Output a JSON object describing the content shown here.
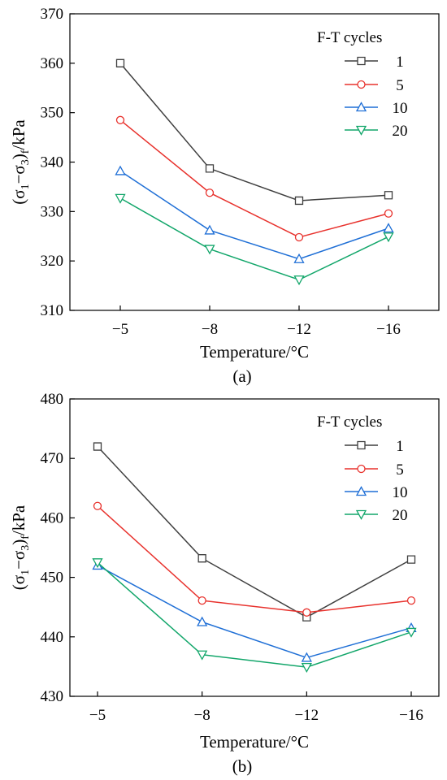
{
  "chart_data": [
    {
      "type": "line",
      "panel_label": "(a)",
      "xlabel": "Temperature/°C",
      "ylabel": {
        "prefix": "(σ",
        "sub1": "1",
        "mid": "−σ",
        "sub2": "3",
        "close": ")",
        "sub3": "f",
        "suffix": "/kPa"
      },
      "categories": [
        "−5",
        "−8",
        "−12",
        "−16"
      ],
      "x": [
        -5,
        -8,
        -12,
        -16
      ],
      "ylim": [
        310,
        370
      ],
      "yticks": [
        310,
        320,
        330,
        340,
        350,
        360,
        370
      ],
      "legend_title": "F-T cycles",
      "legend_position": "top-right",
      "grid": false,
      "series": [
        {
          "name": "1",
          "color": "#3f3f3f",
          "marker": "square",
          "values": [
            360.0,
            338.7,
            332.2,
            333.3
          ]
        },
        {
          "name": "5",
          "color": "#e8322d",
          "marker": "circle",
          "values": [
            348.5,
            333.8,
            324.8,
            329.6
          ]
        },
        {
          "name": "10",
          "color": "#1f6fd6",
          "marker": "triangle-up",
          "values": [
            338.2,
            326.2,
            320.4,
            326.6
          ]
        },
        {
          "name": "20",
          "color": "#12a66a",
          "marker": "triangle-down",
          "values": [
            332.7,
            322.4,
            316.2,
            324.9
          ]
        }
      ]
    },
    {
      "type": "line",
      "panel_label": "(b)",
      "xlabel": "Temperature/°C",
      "ylabel": {
        "prefix": "(σ",
        "sub1": "1",
        "mid": "−σ",
        "sub2": "3",
        "close": ")",
        "sub3": "f",
        "suffix": "/kPa"
      },
      "categories": [
        "−5",
        "−8",
        "−12",
        "−16"
      ],
      "x": [
        -5,
        -8,
        -12,
        -16
      ],
      "ylim": [
        430,
        480
      ],
      "yticks": [
        430,
        440,
        450,
        460,
        470,
        480
      ],
      "legend_title": "F-T cycles",
      "legend_position": "top-right",
      "grid": false,
      "series": [
        {
          "name": "1",
          "color": "#3f3f3f",
          "marker": "square",
          "values": [
            472.0,
            453.2,
            443.3,
            453.0
          ]
        },
        {
          "name": "5",
          "color": "#e8322d",
          "marker": "circle",
          "values": [
            462.0,
            446.1,
            444.1,
            446.1
          ]
        },
        {
          "name": "10",
          "color": "#1f6fd6",
          "marker": "triangle-up",
          "values": [
            452.0,
            442.5,
            436.5,
            441.5
          ]
        },
        {
          "name": "20",
          "color": "#12a66a",
          "marker": "triangle-down",
          "values": [
            452.5,
            437.0,
            434.9,
            440.8
          ]
        }
      ]
    }
  ]
}
